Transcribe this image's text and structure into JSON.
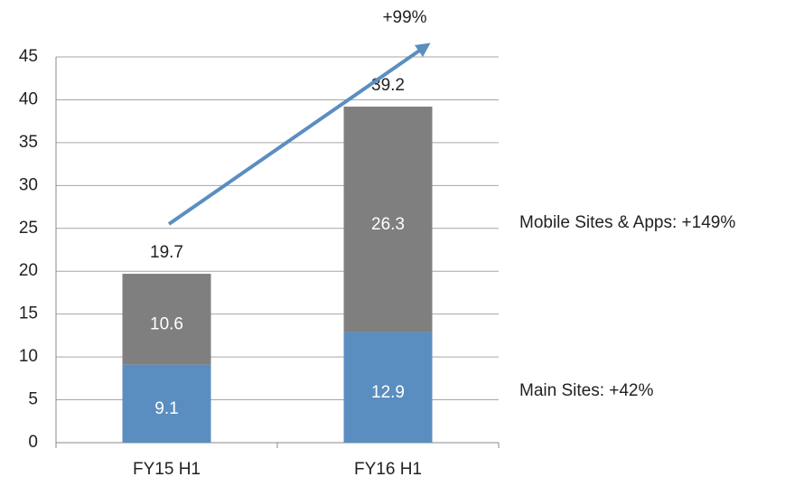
{
  "chart_data": {
    "type": "stacked_bar",
    "categories": [
      "FY15 H1",
      "FY16 H1"
    ],
    "series": [
      {
        "name": "Main Sites:  +42%",
        "color": "#5b8ec0",
        "values": [
          9.1,
          12.9
        ]
      },
      {
        "name": "Mobile Sites & Apps:  +149%",
        "color": "#7f7f7f",
        "values": [
          10.6,
          26.3
        ]
      }
    ],
    "totals": [
      19.7,
      39.2
    ],
    "annotation": "+99%",
    "ylim": [
      0,
      45
    ],
    "yticks": [
      0,
      5,
      10,
      15,
      20,
      25,
      30,
      35,
      40,
      45
    ],
    "grid": true
  }
}
